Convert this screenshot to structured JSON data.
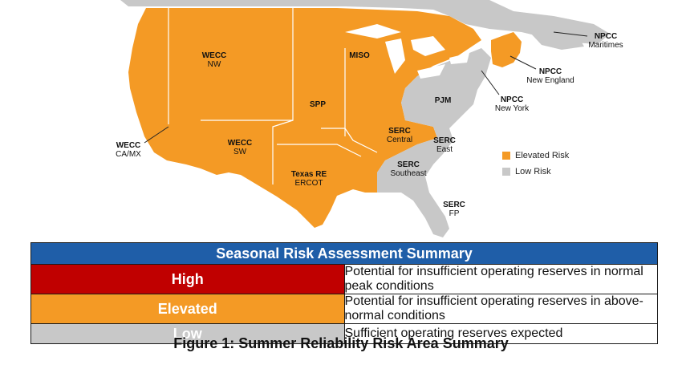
{
  "map": {
    "colors": {
      "elevated": "#f49a25",
      "low": "#c8c8c8",
      "border": "#ffffff",
      "water": "#ffffff"
    },
    "regions": [
      {
        "code": "WECC",
        "sub": "NW",
        "risk": "elevated"
      },
      {
        "code": "MISO",
        "sub": "",
        "risk": "elevated"
      },
      {
        "code": "SPP",
        "sub": "",
        "risk": "elevated"
      },
      {
        "code": "PJM",
        "sub": "",
        "risk": "low"
      },
      {
        "code": "WECC",
        "sub": "SW",
        "risk": "elevated"
      },
      {
        "code": "SERC",
        "sub": "Central",
        "risk": "elevated"
      },
      {
        "code": "SERC",
        "sub": "East",
        "risk": "low"
      },
      {
        "code": "SERC",
        "sub": "Southeast",
        "risk": "low"
      },
      {
        "code": "Texas RE",
        "sub": "ERCOT",
        "risk": "elevated"
      },
      {
        "code": "SERC",
        "sub": "FP",
        "risk": "low"
      }
    ],
    "callouts": [
      {
        "code": "NPCC",
        "sub": "Maritimes",
        "risk": "low"
      },
      {
        "code": "NPCC",
        "sub": "New England",
        "risk": "elevated"
      },
      {
        "code": "NPCC",
        "sub": "New York",
        "risk": "low"
      },
      {
        "code": "WECC",
        "sub": "CA/MX",
        "risk": "elevated"
      }
    ]
  },
  "legend": [
    {
      "label": "Elevated Risk",
      "color": "#f49a25"
    },
    {
      "label": "Low Risk",
      "color": "#c8c8c8"
    }
  ],
  "table": {
    "title": "Seasonal Risk Assessment Summary",
    "rows": [
      {
        "level": "High",
        "color": "#c00000",
        "description": "Potential for insufficient operating reserves in normal peak conditions"
      },
      {
        "level": "Elevated",
        "color": "#f49a25",
        "description": "Potential for insufficient operating reserves in above-normal conditions"
      },
      {
        "level": "Low",
        "color": "#c8c8c8",
        "description": "Sufficient operating reserves expected"
      }
    ]
  },
  "caption": "Figure 1: Summer Reliability Risk Area Summary"
}
